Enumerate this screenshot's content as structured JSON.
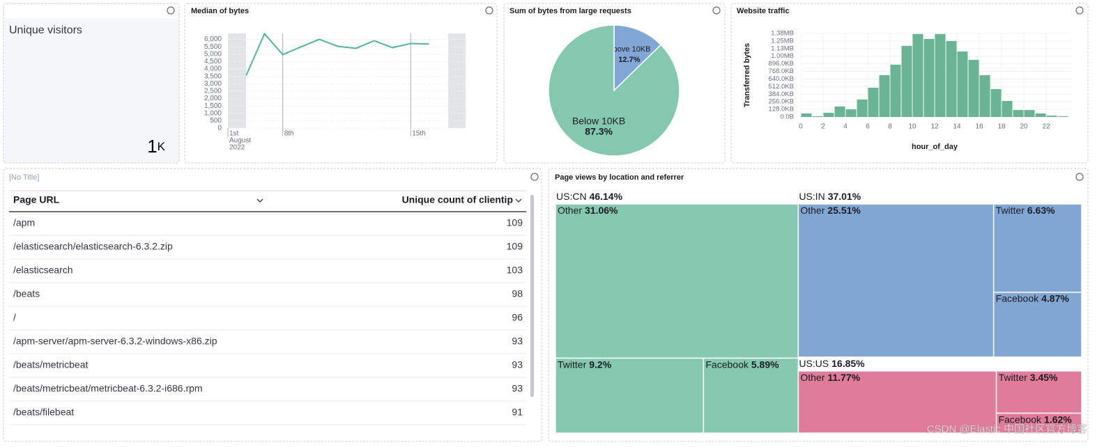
{
  "metric": {
    "label": "Unique visitors",
    "value": "1",
    "unit": "K"
  },
  "chart_data": [
    {
      "type": "line",
      "title": "Median of bytes",
      "x": [
        6,
        7,
        8,
        9,
        10,
        11,
        12,
        13,
        14,
        15,
        16
      ],
      "values": [
        3560,
        6380,
        4970,
        5490,
        6000,
        5530,
        5390,
        5910,
        5440,
        5720,
        5680
      ],
      "color": "#54b399",
      "xlim": [
        5,
        18
      ],
      "ylim": [
        0,
        6400
      ],
      "yticks": [
        0,
        500,
        {
          "value": 1000,
          "label": "1,000"
        },
        {
          "value": 1500,
          "label": "1,500"
        },
        {
          "value": 2000,
          "label": "2,000"
        },
        {
          "value": 2500,
          "label": "2,500"
        },
        {
          "value": 3000,
          "label": "3,000"
        },
        {
          "value": 3500,
          "label": "3,500"
        },
        {
          "value": 4000,
          "label": "4,000"
        },
        {
          "value": 4500,
          "label": "4,500"
        },
        {
          "value": 5000,
          "label": "5,000"
        },
        {
          "value": 5500,
          "label": "5,500"
        },
        {
          "value": 6000,
          "label": "6,000"
        }
      ],
      "xticks": [
        {
          "value": 5,
          "label": "1st"
        },
        {
          "value": 8,
          "label": "8th"
        },
        {
          "value": 15,
          "label": "15th"
        }
      ],
      "x_period": [
        "August",
        "2022"
      ],
      "grid": true
    },
    {
      "type": "pie",
      "title": "Sum of bytes from large requests",
      "categories": [
        "Above 10KB",
        "Below 10KB"
      ],
      "values": [
        12.7,
        87.3
      ],
      "value_labels": [
        "12.7%",
        "87.3%"
      ],
      "colors": [
        "#82a6d6",
        "#85c8b0"
      ]
    },
    {
      "type": "histogram",
      "title": "Website traffic",
      "bins": [
        0,
        1,
        2,
        3,
        4,
        5,
        6,
        7,
        8,
        9,
        10,
        11,
        12,
        13,
        14,
        15,
        16,
        17,
        18,
        19,
        20,
        21,
        22,
        23,
        24
      ],
      "values": [
        59,
        12,
        70,
        176,
        129,
        294,
        493,
        705,
        881,
        1198,
        1398,
        1315,
        1398,
        1280,
        1104,
        963,
        705,
        470,
        270,
        117,
        117,
        59,
        23,
        12
      ],
      "color": "#6ab394",
      "xlim": [
        0,
        24
      ],
      "xticks": [
        0,
        2,
        4,
        6,
        8,
        10,
        12,
        14,
        16,
        18,
        20,
        22
      ],
      "ylim": [
        0,
        1408
      ],
      "yticks": [
        {
          "value": 0,
          "label": "0.0B"
        },
        {
          "value": 128,
          "label": "128.0KB"
        },
        {
          "value": 256,
          "label": "256.0KB"
        },
        {
          "value": 384,
          "label": "384.0KB"
        },
        {
          "value": 512,
          "label": "512.0KB"
        },
        {
          "value": 640,
          "label": "640.0KB"
        },
        {
          "value": 768,
          "label": "768.0KB"
        },
        {
          "value": 896,
          "label": "896.0KB"
        },
        {
          "value": 1024,
          "label": "1.00MB"
        },
        {
          "value": 1152,
          "label": "1.13MB"
        },
        {
          "value": 1280,
          "label": "1.25MB"
        },
        {
          "value": 1408,
          "label": "1.38MB"
        }
      ],
      "xlabel": "hour_of_day",
      "ylabel": "Transferred bytes",
      "grid": true
    },
    {
      "type": "treemap",
      "title": "Page views by location and referrer",
      "groups": [
        {
          "name": "US:CN",
          "value": 46.14,
          "value_label": "46.14%",
          "color": "#85c8b0",
          "categories": [
            "Other",
            "Twitter",
            "Facebook"
          ],
          "values": [
            31.06,
            9.2,
            5.89
          ],
          "value_labels": [
            "31.06%",
            "9.2%",
            "5.89%"
          ]
        },
        {
          "name": "US:IN",
          "value": 37.01,
          "value_label": "37.01%",
          "color": "#82a6d4",
          "categories": [
            "Other",
            "Twitter",
            "Facebook"
          ],
          "values": [
            25.51,
            6.63,
            4.87
          ],
          "value_labels": [
            "25.51%",
            "6.63%",
            "4.87%"
          ]
        },
        {
          "name": "US:US",
          "value": 16.85,
          "value_label": "16.85%",
          "color": "#e07b99",
          "categories": [
            "Other",
            "Twitter",
            "Facebook"
          ],
          "values": [
            11.77,
            3.45,
            1.62
          ],
          "value_labels": [
            "11.77%",
            "3.45%",
            "1.62%"
          ]
        }
      ]
    }
  ],
  "table": {
    "title": "[No Title]",
    "columns": [
      "Page URL",
      "Unique count of clientip"
    ],
    "rows": [
      [
        "/apm",
        109
      ],
      [
        "/elasticsearch/elasticsearch-6.3.2.zip",
        109
      ],
      [
        "/elasticsearch",
        103
      ],
      [
        "/beats",
        98
      ],
      [
        "/",
        96
      ],
      [
        "/apm-server/apm-server-6.3.2-windows-x86.zip",
        93
      ],
      [
        "/beats/metricbeat",
        93
      ],
      [
        "/beats/metricbeat/metricbeat-6.3.2-i686.rpm",
        93
      ],
      [
        "/beats/filebeat",
        91
      ]
    ]
  },
  "watermark": "CSDN @Elastic 中国社区官方博客"
}
